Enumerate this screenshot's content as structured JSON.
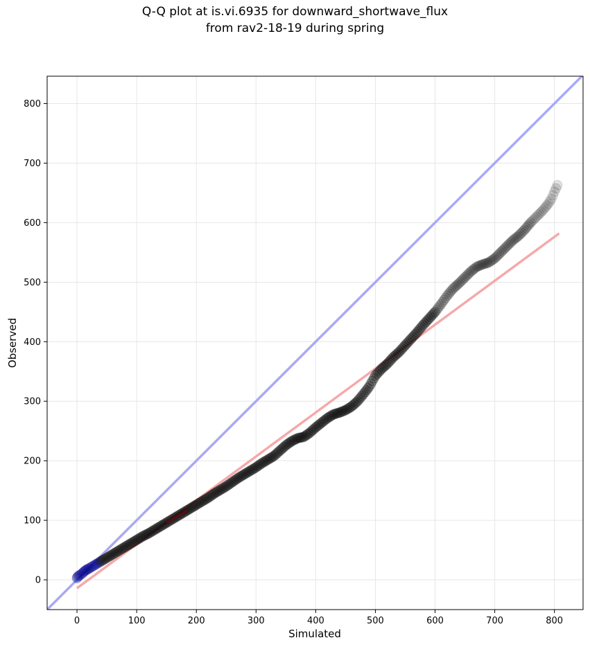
{
  "chart_data": {
    "type": "scatter",
    "title_line1": "Q-Q plot at is.vi.6935 for downward_shortwave_flux",
    "title_line2": "from rav2-18-19 during spring",
    "xlabel": "Simulated",
    "ylabel": "Observed",
    "xlim": [
      -50,
      848
    ],
    "ylim": [
      -50,
      846
    ],
    "xticks": [
      0,
      100,
      200,
      300,
      400,
      500,
      600,
      700,
      800
    ],
    "yticks": [
      0,
      100,
      200,
      300,
      400,
      500,
      600,
      700,
      800
    ],
    "grid": true,
    "reference_lines": {
      "identity": {
        "from": [
          -50,
          -50
        ],
        "to": [
          848,
          848
        ],
        "color": "#a9a9f5"
      },
      "fit": {
        "from": [
          0,
          -14
        ],
        "to": [
          808,
          582
        ],
        "color": "#f5a9a9"
      }
    },
    "quantile_points": [
      [
        0,
        3
      ],
      [
        1,
        5
      ],
      [
        3,
        7
      ],
      [
        5,
        8
      ],
      [
        8,
        10
      ],
      [
        12,
        14
      ],
      [
        16,
        17
      ],
      [
        20,
        19
      ],
      [
        25,
        22
      ],
      [
        30,
        25
      ],
      [
        35,
        28
      ],
      [
        40,
        31
      ],
      [
        45,
        34
      ],
      [
        50,
        37
      ],
      [
        55,
        40
      ],
      [
        60,
        43
      ],
      [
        65,
        46
      ],
      [
        70,
        49
      ],
      [
        75,
        52
      ],
      [
        80,
        55
      ],
      [
        85,
        58
      ],
      [
        90,
        61
      ],
      [
        95,
        64
      ],
      [
        100,
        67
      ],
      [
        110,
        73
      ],
      [
        120,
        78
      ],
      [
        130,
        84
      ],
      [
        140,
        90
      ],
      [
        150,
        96
      ],
      [
        160,
        102
      ],
      [
        170,
        108
      ],
      [
        180,
        114
      ],
      [
        190,
        120
      ],
      [
        200,
        126
      ],
      [
        210,
        132
      ],
      [
        220,
        138
      ],
      [
        230,
        145
      ],
      [
        240,
        151
      ],
      [
        250,
        157
      ],
      [
        260,
        164
      ],
      [
        270,
        171
      ],
      [
        280,
        177
      ],
      [
        290,
        183
      ],
      [
        300,
        189
      ],
      [
        310,
        196
      ],
      [
        320,
        202
      ],
      [
        330,
        208
      ],
      [
        340,
        217
      ],
      [
        350,
        226
      ],
      [
        360,
        233
      ],
      [
        370,
        238
      ],
      [
        380,
        240
      ],
      [
        390,
        247
      ],
      [
        400,
        256
      ],
      [
        410,
        264
      ],
      [
        420,
        272
      ],
      [
        430,
        278
      ],
      [
        440,
        281
      ],
      [
        450,
        285
      ],
      [
        460,
        291
      ],
      [
        470,
        300
      ],
      [
        480,
        312
      ],
      [
        490,
        325
      ],
      [
        500,
        343
      ],
      [
        510,
        354
      ],
      [
        520,
        363
      ],
      [
        530,
        374
      ],
      [
        540,
        383
      ],
      [
        550,
        394
      ],
      [
        560,
        405
      ],
      [
        570,
        416
      ],
      [
        580,
        428
      ],
      [
        590,
        439
      ],
      [
        600,
        450
      ],
      [
        610,
        463
      ],
      [
        620,
        477
      ],
      [
        630,
        489
      ],
      [
        640,
        498
      ],
      [
        650,
        508
      ],
      [
        660,
        518
      ],
      [
        670,
        526
      ],
      [
        680,
        530
      ],
      [
        690,
        533
      ],
      [
        700,
        540
      ],
      [
        710,
        550
      ],
      [
        720,
        560
      ],
      [
        730,
        570
      ],
      [
        740,
        578
      ],
      [
        750,
        588
      ],
      [
        760,
        600
      ],
      [
        770,
        610
      ],
      [
        780,
        620
      ],
      [
        790,
        632
      ],
      [
        795,
        640
      ],
      [
        800,
        652
      ],
      [
        805,
        663
      ]
    ],
    "series_colors": {
      "points": "#000000",
      "low_points": "#00008b",
      "fit_overlap": "#8b0000"
    }
  }
}
